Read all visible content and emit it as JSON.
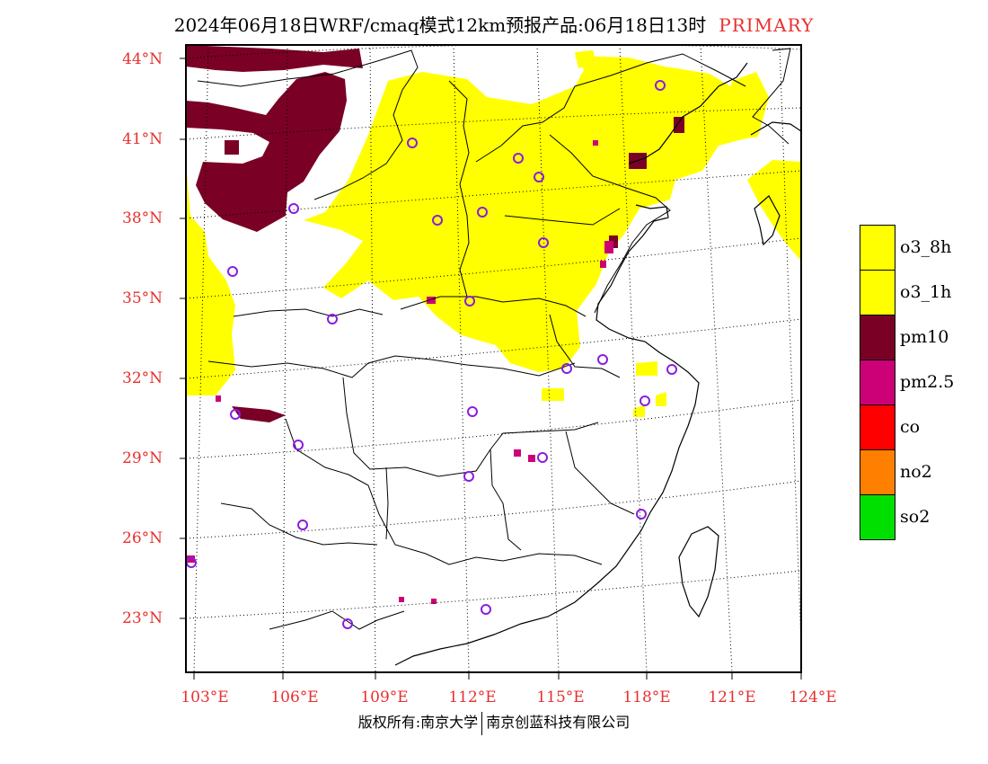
{
  "title": {
    "text": "2024年06月18日WRF/cmaq模式12km预报产品:06月18日13时",
    "highlight": "PRIMARY",
    "highlight_color": "#e8302e"
  },
  "axes": {
    "lat_labels": [
      "44°N",
      "41°N",
      "38°N",
      "35°N",
      "32°N",
      "29°N",
      "26°N",
      "23°N"
    ],
    "lon_labels": [
      "103°E",
      "106°E",
      "109°E",
      "112°E",
      "115°E",
      "118°E",
      "121°E",
      "124°E"
    ],
    "grid": "dotted",
    "label_color": "#e8302e"
  },
  "legend": {
    "items": [
      {
        "label": "o3_8h",
        "color": "#ffff00"
      },
      {
        "label": "o3_1h",
        "color": "#ffff00"
      },
      {
        "label": "pm10",
        "color": "#7a0026"
      },
      {
        "label": "pm2.5",
        "color": "#cc0077"
      },
      {
        "label": "co",
        "color": "#ff0000"
      },
      {
        "label": "no2",
        "color": "#ff7f00"
      },
      {
        "label": "so2",
        "color": "#00e000"
      }
    ]
  },
  "footer": {
    "left": "版权所有:南京大学",
    "right": "南京创蓝科技有限公司"
  },
  "station_marker_color": "#8a1de0"
}
